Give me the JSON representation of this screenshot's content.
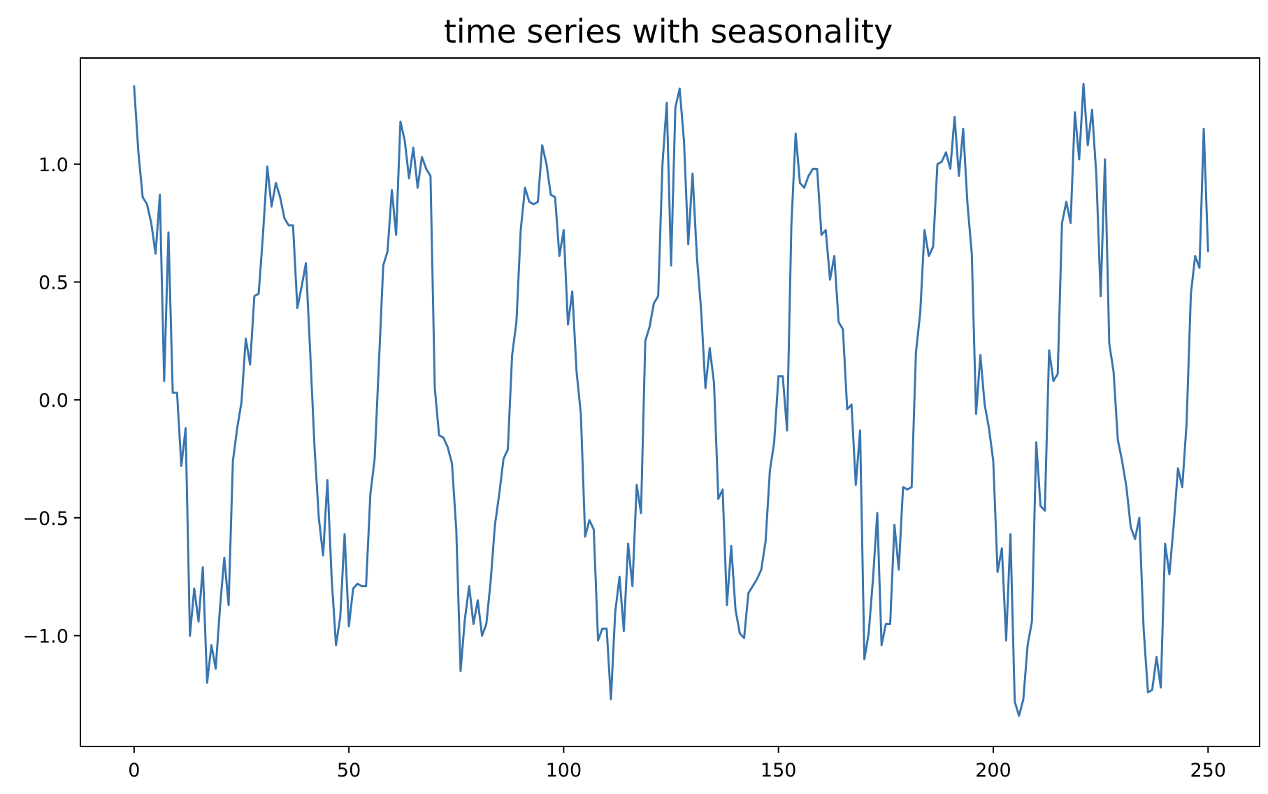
{
  "chart_data": {
    "type": "line",
    "title": "time series with seasonality",
    "xlabel": "",
    "ylabel": "",
    "xlim": [
      -12.5,
      262
    ],
    "ylim": [
      -1.47,
      1.45
    ],
    "xticks": [
      0,
      50,
      100,
      150,
      200,
      250
    ],
    "xtick_labels": [
      "0",
      "50",
      "100",
      "150",
      "200",
      "250"
    ],
    "yticks": [
      -1.0,
      -0.5,
      0.0,
      0.5,
      1.0
    ],
    "ytick_labels": [
      "−1.0",
      "−0.5",
      "0.0",
      "0.5",
      "1.0"
    ],
    "grid": false,
    "series_color": "#3a75af",
    "series": [
      {
        "values": [
          1.33,
          1.05,
          0.86,
          0.83,
          0.75,
          0.62,
          0.87,
          0.08,
          0.71,
          0.03,
          0.03,
          -0.28,
          -0.12,
          -1.0,
          -0.8,
          -0.94,
          -0.71,
          -1.2,
          -1.04,
          -1.14,
          -0.88,
          -0.67,
          -0.87,
          -0.26,
          -0.12,
          -0.01,
          0.26,
          0.15,
          0.44,
          0.45,
          0.7,
          0.99,
          0.82,
          0.92,
          0.86,
          0.77,
          0.74,
          0.74,
          0.39,
          0.48,
          0.58,
          0.2,
          -0.2,
          -0.5,
          -0.66,
          -0.34,
          -0.76,
          -1.04,
          -0.92,
          -0.57,
          -0.96,
          -0.8,
          -0.78,
          -0.79,
          -0.79,
          -0.4,
          -0.25,
          0.16,
          0.57,
          0.63,
          0.89,
          0.7,
          1.18,
          1.1,
          0.94,
          1.07,
          0.9,
          1.03,
          0.98,
          0.95,
          0.05,
          -0.15,
          -0.16,
          -0.2,
          -0.27,
          -0.55,
          -1.15,
          -0.93,
          -0.79,
          -0.95,
          -0.85,
          -1.0,
          -0.95,
          -0.77,
          -0.53,
          -0.4,
          -0.25,
          -0.21,
          0.19,
          0.33,
          0.72,
          0.9,
          0.84,
          0.83,
          0.84,
          1.08,
          1.0,
          0.87,
          0.86,
          0.61,
          0.72,
          0.32,
          0.46,
          0.12,
          -0.06,
          -0.58,
          -0.51,
          -0.55,
          -1.02,
          -0.97,
          -0.97,
          -1.27,
          -0.9,
          -0.75,
          -0.98,
          -0.61,
          -0.79,
          -0.36,
          -0.48,
          0.25,
          0.31,
          0.41,
          0.44,
          1.0,
          1.26,
          0.57,
          1.24,
          1.32,
          1.1,
          0.66,
          0.96,
          0.61,
          0.38,
          0.05,
          0.22,
          0.07,
          -0.42,
          -0.38,
          -0.87,
          -0.62,
          -0.89,
          -0.99,
          -1.01,
          -0.82,
          -0.79,
          -0.76,
          -0.72,
          -0.6,
          -0.3,
          -0.18,
          0.1,
          0.1,
          -0.13,
          0.74,
          1.13,
          0.92,
          0.9,
          0.95,
          0.98,
          0.98,
          0.7,
          0.72,
          0.51,
          0.61,
          0.33,
          0.3,
          -0.04,
          -0.02,
          -0.36,
          -0.13,
          -1.1,
          -0.99,
          -0.76,
          -0.48,
          -1.04,
          -0.95,
          -0.95,
          -0.53,
          -0.72,
          -0.37,
          -0.38,
          -0.37,
          0.2,
          0.37,
          0.72,
          0.61,
          0.65,
          1.0,
          1.01,
          1.05,
          0.98,
          1.2,
          0.95,
          1.15,
          0.83,
          0.62,
          -0.06,
          0.19,
          -0.02,
          -0.12,
          -0.26,
          -0.73,
          -0.63,
          -1.02,
          -0.57,
          -1.28,
          -1.34,
          -1.27,
          -1.04,
          -0.94,
          -0.18,
          -0.45,
          -0.47,
          0.21,
          0.08,
          0.11,
          0.75,
          0.84,
          0.75,
          1.22,
          1.02,
          1.34,
          1.08,
          1.23,
          0.95,
          0.44,
          1.02,
          0.24,
          0.12,
          -0.17,
          -0.26,
          -0.37,
          -0.54,
          -0.59,
          -0.5,
          -0.97,
          -1.24,
          -1.23,
          -1.09,
          -1.22,
          -0.61,
          -0.74,
          -0.53,
          -0.29,
          -0.37,
          -0.1,
          0.45,
          0.61,
          0.56,
          1.15,
          0.63
        ]
      }
    ]
  }
}
